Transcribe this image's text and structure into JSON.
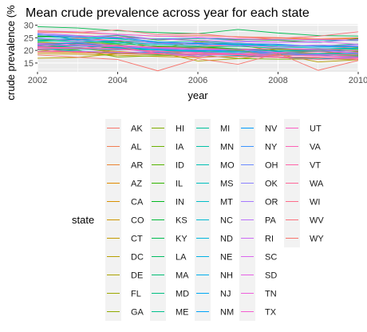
{
  "chart_data": {
    "type": "line",
    "title": "Mean crude prevalence across year for each state",
    "xlabel": "year",
    "ylabel": "crude prevalence (%",
    "xlim": [
      2002,
      2010
    ],
    "ylim": [
      11.5,
      30.5
    ],
    "x_ticks": [
      "2002",
      "2004",
      "2006",
      "2008",
      "2010"
    ],
    "y_ticks": [
      "15",
      "20",
      "25",
      "30"
    ],
    "grid": true,
    "legend_position": "bottom",
    "legend_title": "state",
    "x": [
      2002,
      2003,
      2004,
      2005,
      2006,
      2007,
      2008,
      2009,
      2010
    ],
    "series": [
      {
        "name": "AK",
        "color": "#F8766D",
        "values": [
          24.1,
          24.8,
          23.9,
          21.5,
          21.6,
          22.0,
          21.4,
          21.8,
          20.8
        ]
      },
      {
        "name": "AL",
        "color": "#F27D52",
        "values": [
          27.3,
          27.0,
          26.4,
          25.6,
          25.9,
          25.4,
          25.1,
          24.7,
          25.0
        ]
      },
      {
        "name": "AR",
        "color": "#EA8331",
        "values": [
          25.5,
          25.9,
          25.3,
          24.5,
          24.8,
          24.1,
          24.9,
          24.3,
          24.8
        ]
      },
      {
        "name": "AZ",
        "color": "#E18A00",
        "values": [
          20.4,
          20.9,
          19.6,
          18.7,
          19.5,
          18.4,
          19.2,
          18.8,
          19.4
        ]
      },
      {
        "name": "CA",
        "color": "#D89000",
        "values": [
          19.4,
          19.1,
          18.7,
          18.3,
          18.5,
          18.7,
          17.9,
          18.4,
          18.1
        ]
      },
      {
        "name": "CO",
        "color": "#CE9500",
        "values": [
          18.8,
          18.5,
          18.1,
          17.6,
          17.2,
          17.8,
          17.3,
          17.0,
          17.1
        ]
      },
      {
        "name": "CT",
        "color": "#C49A00",
        "values": [
          19.6,
          20.8,
          19.2,
          19.1,
          19.7,
          19.4,
          18.6,
          18.3,
          18.8
        ]
      },
      {
        "name": "DC",
        "color": "#B79F00",
        "values": [
          16.9,
          17.2,
          18.7,
          19.4,
          15.8,
          16.7,
          18.5,
          15.4,
          16.3
        ]
      },
      {
        "name": "DE",
        "color": "#ABA300",
        "values": [
          22.8,
          23.1,
          23.6,
          20.7,
          23.5,
          22.1,
          19.8,
          19.5,
          21.2
        ]
      },
      {
        "name": "FL",
        "color": "#9DA700",
        "values": [
          23.3,
          22.7,
          21.4,
          21.5,
          21.1,
          20.3,
          20.8,
          20.4,
          20.6
        ]
      },
      {
        "name": "GA",
        "color": "#8FAA00",
        "values": [
          22.4,
          23.1,
          22.7,
          21.8,
          21.5,
          20.1,
          19.8,
          19.9,
          20.1
        ]
      },
      {
        "name": "HI",
        "color": "#7FAE00",
        "values": [
          20.7,
          20.1,
          17.4,
          17.9,
          18.2,
          16.8,
          16.5,
          16.6,
          16.4
        ]
      },
      {
        "name": "IA",
        "color": "#6BB100",
        "values": [
          22.3,
          21.9,
          21.6,
          21.4,
          20.1,
          20.5,
          20.3,
          20.1,
          19.8
        ]
      },
      {
        "name": "ID",
        "color": "#53B400",
        "values": [
          22.6,
          21.8,
          20.9,
          19.5,
          20.4,
          19.9,
          18.7,
          19.6,
          18.3
        ]
      },
      {
        "name": "IL",
        "color": "#2FB600",
        "values": [
          21.1,
          22.7,
          22.3,
          20.6,
          21.5,
          20.6,
          20.4,
          20.5,
          19.6
        ]
      },
      {
        "name": "IN",
        "color": "#00B81F",
        "values": [
          25.7,
          25.2,
          25.9,
          24.1,
          24.7,
          24.4,
          24.0,
          23.2,
          24.6
        ]
      },
      {
        "name": "KS",
        "color": "#00BA38",
        "values": [
          21.4,
          21.8,
          20.9,
          20.2,
          20.8,
          20.6,
          19.7,
          19.6,
          20.0
        ]
      },
      {
        "name": "KY",
        "color": "#00BB4E",
        "values": [
          29.4,
          28.9,
          27.8,
          27.1,
          26.6,
          28.3,
          26.9,
          25.9,
          25.7
        ]
      },
      {
        "name": "LA",
        "color": "#00BC61",
        "values": [
          24.1,
          24.3,
          23.6,
          23.1,
          22.4,
          22.9,
          22.2,
          21.8,
          22.5
        ]
      },
      {
        "name": "MA",
        "color": "#00BE71",
        "values": [
          20.2,
          19.8,
          18.9,
          18.4,
          18.3,
          18.4,
          17.4,
          16.6,
          17.2
        ]
      },
      {
        "name": "MD",
        "color": "#00BF80",
        "values": [
          21.7,
          21.2,
          20.4,
          19.8,
          19.6,
          18.4,
          18.3,
          17.9,
          17.8
        ]
      },
      {
        "name": "ME",
        "color": "#00C08E",
        "values": [
          23.6,
          24.0,
          22.7,
          21.8,
          21.4,
          21.6,
          20.9,
          20.3,
          20.6
        ]
      },
      {
        "name": "MI",
        "color": "#00C19B",
        "values": [
          25.3,
          25.1,
          24.6,
          23.2,
          23.8,
          22.8,
          22.1,
          21.8,
          21.4
        ]
      },
      {
        "name": "MN",
        "color": "#00C1A7",
        "values": [
          21.3,
          21.0,
          20.7,
          19.7,
          19.2,
          18.4,
          18.3,
          17.9,
          17.5
        ]
      },
      {
        "name": "MO",
        "color": "#00C0B3",
        "values": [
          24.0,
          23.4,
          23.2,
          22.4,
          22.7,
          22.4,
          21.7,
          21.6,
          21.7
        ]
      },
      {
        "name": "MS",
        "color": "#00BFBE",
        "values": [
          26.1,
          25.6,
          24.8,
          24.7,
          24.8,
          24.4,
          24.3,
          24.1,
          23.9
        ]
      },
      {
        "name": "MT",
        "color": "#00BDC8",
        "values": [
          20.6,
          20.5,
          20.1,
          20.3,
          19.8,
          19.4,
          19.5,
          18.3,
          19.0
        ]
      },
      {
        "name": "NC",
        "color": "#00BAD2",
        "values": [
          24.6,
          24.4,
          23.2,
          22.5,
          21.9,
          22.7,
          21.4,
          21.0,
          20.8
        ]
      },
      {
        "name": "ND",
        "color": "#00B6DC",
        "values": [
          22.9,
          21.8,
          21.5,
          20.1,
          20.0,
          20.3,
          18.8,
          18.7,
          18.8
        ]
      },
      {
        "name": "NE",
        "color": "#00B2E4",
        "values": [
          22.2,
          21.8,
          21.3,
          20.5,
          19.9,
          19.7,
          18.7,
          18.5,
          18.4
        ]
      },
      {
        "name": "NH",
        "color": "#00ADEC",
        "values": [
          22.5,
          22.1,
          21.1,
          20.3,
          19.4,
          19.0,
          18.3,
          18.2,
          17.3
        ]
      },
      {
        "name": "NJ",
        "color": "#00A8F3",
        "values": [
          20.3,
          19.8,
          19.2,
          19.3,
          18.4,
          18.0,
          17.2,
          16.5,
          17.5
        ]
      },
      {
        "name": "NM",
        "color": "#00A2F8",
        "values": [
          22.2,
          22.9,
          21.5,
          21.1,
          20.1,
          20.4,
          19.8,
          20.1,
          19.9
        ]
      },
      {
        "name": "NV",
        "color": "#009BFC",
        "values": [
          26.6,
          24.2,
          25.1,
          23.4,
          22.8,
          22.1,
          22.3,
          21.5,
          21.4
        ]
      },
      {
        "name": "NY",
        "color": "#3A93FF",
        "values": [
          22.1,
          21.7,
          21.4,
          21.0,
          20.3,
          19.6,
          18.9,
          18.0,
          17.5
        ]
      },
      {
        "name": "OH",
        "color": "#6B8BFF",
        "values": [
          26.4,
          25.7,
          25.3,
          22.9,
          23.1,
          22.8,
          22.5,
          21.6,
          22.3
        ]
      },
      {
        "name": "OK",
        "color": "#8C82FF",
        "values": [
          26.3,
          25.2,
          26.1,
          24.4,
          24.9,
          23.8,
          23.3,
          23.2,
          24.4
        ]
      },
      {
        "name": "OR",
        "color": "#A679FF",
        "values": [
          21.2,
          20.8,
          20.7,
          19.0,
          17.7,
          18.9,
          17.5,
          17.2,
          16.9
        ]
      },
      {
        "name": "PA",
        "color": "#BB71FB",
        "values": [
          24.9,
          23.8,
          24.1,
          22.8,
          22.4,
          21.9,
          21.5,
          22.2,
          21.7
        ]
      },
      {
        "name": "RI",
        "color": "#CC6AF5",
        "values": [
          22.7,
          23.2,
          21.9,
          21.1,
          20.4,
          20.4,
          20.7,
          20.1,
          19.1
        ]
      },
      {
        "name": "SC",
        "color": "#DA65EE",
        "values": [
          27.0,
          25.9,
          25.2,
          24.5,
          24.0,
          23.4,
          23.3,
          23.5,
          22.4
        ]
      },
      {
        "name": "SD",
        "color": "#E561E6",
        "values": [
          21.9,
          22.4,
          21.6,
          20.7,
          20.3,
          20.4,
          19.2,
          19.5,
          19.1
        ]
      },
      {
        "name": "TN",
        "color": "#EE5FDB",
        "values": [
          27.8,
          27.4,
          26.4,
          25.7,
          25.3,
          24.6,
          24.2,
          24.3,
          24.1
        ]
      },
      {
        "name": "TX",
        "color": "#F55ED0",
        "values": [
          20.7,
          20.8,
          20.7,
          19.5,
          19.3,
          18.7,
          18.9,
          18.3,
          18.5
        ]
      },
      {
        "name": "UT",
        "color": "#FA5FC3",
        "values": [
          19.5,
          19.6,
          19.3,
          18.9,
          18.2,
          18.4,
          18.1,
          17.9,
          17.5
        ]
      },
      {
        "name": "VA",
        "color": "#FD61B6",
        "values": [
          22.4,
          21.9,
          22.0,
          21.2,
          20.9,
          20.3,
          20.7,
          20.6,
          19.8
        ]
      },
      {
        "name": "VT",
        "color": "#FF64A8",
        "values": [
          21.5,
          21.0,
          20.3,
          19.8,
          18.9,
          18.5,
          18.2,
          17.8,
          17.1
        ]
      },
      {
        "name": "WA",
        "color": "#FF6899",
        "values": [
          21.1,
          20.9,
          21.7,
          18.8,
          18.6,
          18.3,
          17.4,
          17.3,
          16.4
        ]
      },
      {
        "name": "WI",
        "color": "#FD6C8A",
        "values": [
          20.4,
          19.3,
          18.8,
          18.6,
          17.4,
          17.6,
          17.2,
          16.4,
          16.8
        ]
      },
      {
        "name": "WV",
        "color": "#FB707B",
        "values": [
          27.7,
          27.2,
          28.1,
          26.3,
          26.6,
          25.2,
          24.8,
          25.6,
          27.4
        ]
      },
      {
        "name": "WY",
        "color": "#F8746C",
        "values": [
          18.2,
          17.3,
          16.4,
          11.9,
          16.7,
          14.5,
          18.8,
          12.1,
          16.0
        ]
      }
    ]
  }
}
